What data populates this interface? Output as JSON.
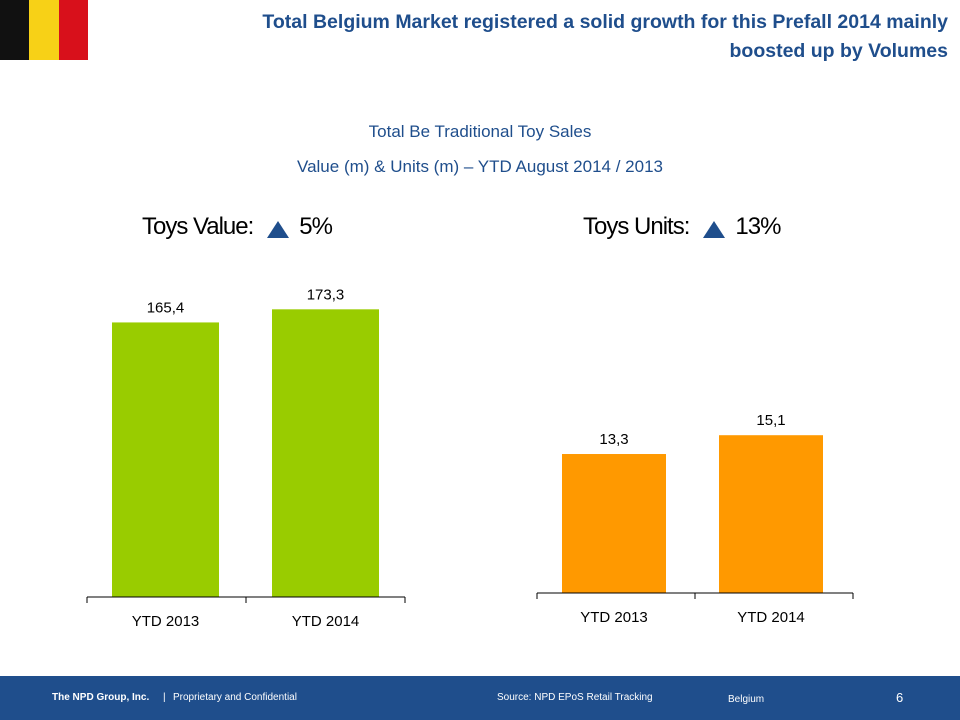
{
  "flag_colors": [
    "#111111",
    "#f7d117",
    "#d8101b"
  ],
  "headline": "Total Belgium Market registered a solid growth for this Prefall 2014 mainly boosted up by Volumes",
  "subtitle_line1": "Total Be Traditional Toy Sales",
  "subtitle_line2": "Value (m) & Units (m) – YTD August 2014 / 2013",
  "kpis": {
    "value_label": "Toys Value:",
    "value_growth": "5%",
    "units_label": "Toys Units:",
    "units_growth": "13%",
    "arrow_icon": "triangle-up-icon"
  },
  "chart_data": [
    {
      "type": "bar",
      "categories": [
        "YTD 2013",
        "YTD 2014"
      ],
      "values": [
        165.4,
        173.3
      ],
      "value_labels": [
        "165,4",
        "173,3"
      ],
      "color": "#99cc00",
      "title": "Toys Value"
    },
    {
      "type": "bar",
      "categories": [
        "YTD 2013",
        "YTD 2014"
      ],
      "values": [
        13.3,
        15.1
      ],
      "value_labels": [
        "13,3",
        "15,1"
      ],
      "color": "#ff9900",
      "title": "Toys Units"
    }
  ],
  "footer": {
    "company": "The NPD Group, Inc.",
    "separator": "|",
    "confidential": "Proprietary and Confidential",
    "source": "Source: NPD EPoS Retail Tracking",
    "country": "Belgium",
    "page_number": "6"
  }
}
